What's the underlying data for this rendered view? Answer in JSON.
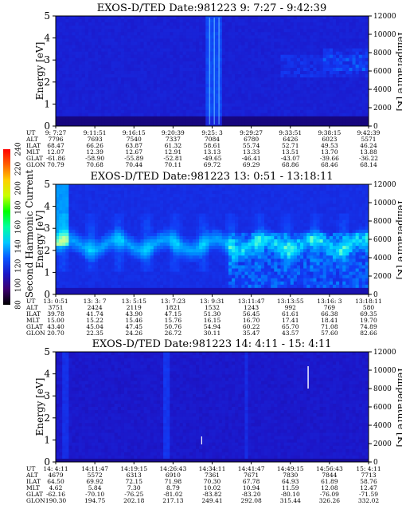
{
  "colorbar": {
    "label": "Second Harmonic Current",
    "ticks": [
      "80",
      "100",
      "120",
      "140",
      "160",
      "180",
      "200",
      "220",
      "240"
    ],
    "stops": [
      "#000000",
      "#3b0070",
      "#1a17c8",
      "#0a55ff",
      "#00c8ff",
      "#00ffa0",
      "#00ff00",
      "#c8ff00",
      "#ffd000",
      "#ff6000",
      "#ff0000"
    ]
  },
  "chart_data": [
    {
      "type": "heatmap",
      "title": "EXOS-D/TED   Date:981223   9: 7:27 - 9:42:39",
      "ylabel": "Energy [eV]",
      "y2label": "Temperature [K]",
      "ylim": [
        0,
        5
      ],
      "y2lim": [
        0,
        12000
      ],
      "y_ticks": [
        "0",
        "1",
        "2",
        "3",
        "4",
        "5"
      ],
      "y2_ticks": [
        "0",
        "2000",
        "4000",
        "6000",
        "8000",
        "10000",
        "12000"
      ],
      "rows": [
        {
          "label": "UT",
          "values": [
            "9: 7:27",
            "9:11:51",
            "9:16:15",
            "9:20:39",
            "9:25: 3",
            "9:29:27",
            "9:33:51",
            "9:38:15",
            "9:42:39"
          ]
        },
        {
          "label": "ALT",
          "values": [
            "7796",
            "7693",
            "7540",
            "7337",
            "7084",
            "6780",
            "6426",
            "6023",
            "5571"
          ]
        },
        {
          "label": "ILAT",
          "values": [
            "68.47",
            "66.26",
            "63.87",
            "61.32",
            "58.61",
            "55.74",
            "52.71",
            "49.53",
            "46.24"
          ]
        },
        {
          "label": "MLT",
          "values": [
            "12.07",
            "12.39",
            "12.67",
            "12.91",
            "13.13",
            "13.33",
            "13.51",
            "13.70",
            "13.88"
          ]
        },
        {
          "label": "GLAT",
          "values": [
            "-61.86",
            "-58.90",
            "-55.89",
            "-52.81",
            "-49.65",
            "-46.41",
            "-43.07",
            "-39.66",
            "-36.22"
          ]
        },
        {
          "label": "GLON",
          "values": [
            "70.79",
            "70.68",
            "70.44",
            "70.11",
            "69.72",
            "69.29",
            "68.86",
            "68.46",
            "68.14"
          ]
        }
      ]
    },
    {
      "type": "heatmap",
      "title": "EXOS-D/TED   Date:981223   13: 0:51 - 13:18:11",
      "ylabel": "Energy [eV]",
      "y2label": "Temperature [K]",
      "ylim": [
        0,
        5
      ],
      "y2lim": [
        0,
        12000
      ],
      "y_ticks": [
        "0",
        "1",
        "2",
        "3",
        "4",
        "5"
      ],
      "y2_ticks": [
        "0",
        "2000",
        "4000",
        "6000",
        "8000",
        "10000",
        "12000"
      ],
      "rows": [
        {
          "label": "UT",
          "values": [
            "13: 0:51",
            "13: 3: 7",
            "13: 5:15",
            "13: 7:23",
            "13: 9:31",
            "13:11:47",
            "13:13:55",
            "13:16: 3",
            "13:18:11"
          ]
        },
        {
          "label": "ALT",
          "values": [
            "3751",
            "2424",
            "2119",
            "1821",
            "1532",
            "1243",
            "992",
            "769",
            "580"
          ]
        },
        {
          "label": "ILAT",
          "values": [
            "39.78",
            "41.74",
            "43.90",
            "47.15",
            "51.30",
            "56.45",
            "61.61",
            "66.38",
            "69.35"
          ]
        },
        {
          "label": "MLT",
          "values": [
            "15.00",
            "15.22",
            "15.46",
            "15.76",
            "16.15",
            "16.70",
            "17.41",
            "18.41",
            "19.70"
          ]
        },
        {
          "label": "GLAT",
          "values": [
            "43.40",
            "45.04",
            "47.45",
            "50.76",
            "54.94",
            "60.22",
            "65.70",
            "71.08",
            "74.89"
          ]
        },
        {
          "label": "GLON",
          "values": [
            "20.70",
            "22.35",
            "24.26",
            "26.72",
            "30.11",
            "35.47",
            "43.57",
            "57.60",
            "82.66"
          ]
        }
      ]
    },
    {
      "type": "heatmap",
      "title": "EXOS-D/TED   Date:981223   14: 4:11 - 15: 4:11",
      "ylabel": "Energy [eV]",
      "y2label": "Temperature [K]",
      "ylim": [
        0,
        5
      ],
      "y2lim": [
        0,
        12000
      ],
      "y_ticks": [
        "0",
        "1",
        "2",
        "3",
        "4",
        "5"
      ],
      "y2_ticks": [
        "0",
        "2000",
        "4000",
        "6000",
        "8000",
        "10000",
        "12000"
      ],
      "rows": [
        {
          "label": "UT",
          "values": [
            "14: 4:11",
            "14:11:47",
            "14:19:15",
            "14:26:43",
            "14:34:11",
            "14:41:47",
            "14:49:15",
            "14:56:43",
            "15: 4:11"
          ]
        },
        {
          "label": "ALT",
          "values": [
            "4679",
            "5572",
            "6313",
            "6910",
            "7361",
            "7671",
            "7830",
            "7844",
            "7713"
          ]
        },
        {
          "label": "ILAT",
          "values": [
            "64.50",
            "69.92",
            "72.15",
            "71.98",
            "70.30",
            "67.78",
            "64.93",
            "61.89",
            "58.76"
          ]
        },
        {
          "label": "MLT",
          "values": [
            "4.62",
            "5.84",
            "7.30",
            "8.79",
            "10.02",
            "10.94",
            "11.59",
            "12.08",
            "12.47"
          ]
        },
        {
          "label": "GLAT",
          "values": [
            "-62.16",
            "-70.10",
            "-76.25",
            "-81.02",
            "-83.82",
            "-83.20",
            "-80.10",
            "-76.09",
            "-71.59"
          ]
        },
        {
          "label": "GLON",
          "values": [
            "190.30",
            "194.75",
            "202.18",
            "217.13",
            "249.41",
            "292.08",
            "315.44",
            "326.26",
            "332.02"
          ]
        }
      ]
    }
  ]
}
